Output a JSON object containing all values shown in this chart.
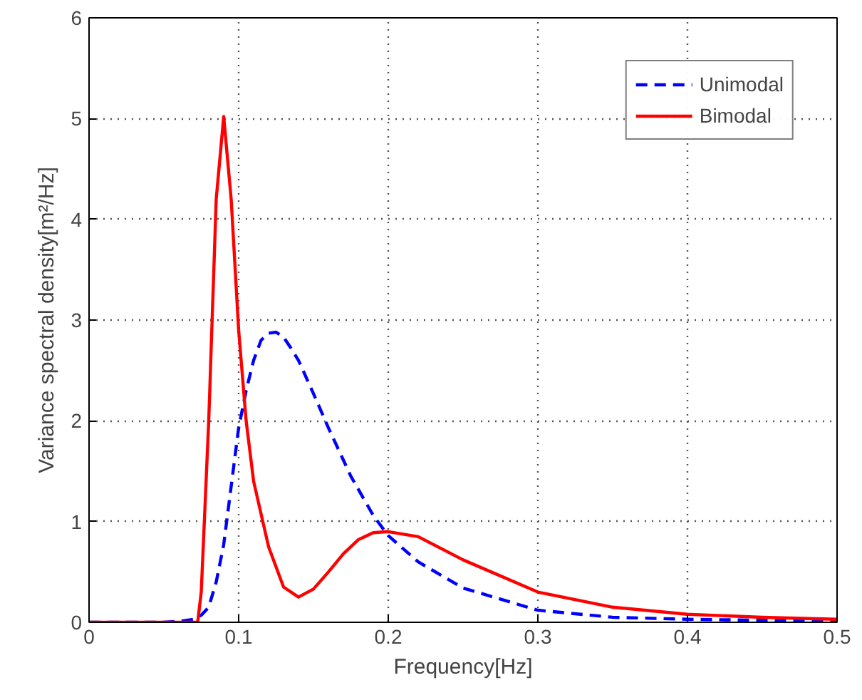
{
  "chart_data": {
    "type": "line",
    "xlabel": "Frequency[Hz]",
    "ylabel": "Variance spectral density[m²/Hz]",
    "xlim": [
      0,
      0.5
    ],
    "ylim": [
      0,
      6
    ],
    "xticks": [
      0,
      0.1,
      0.2,
      0.3,
      0.4,
      0.5
    ],
    "yticks": [
      0,
      1,
      2,
      3,
      4,
      5,
      6
    ],
    "grid": true,
    "legend": "top right",
    "series": [
      {
        "name": "Unimodal",
        "color": "#0000ff",
        "line_style": "dashed",
        "x": [
          0,
          0.05,
          0.06,
          0.07,
          0.075,
          0.08,
          0.085,
          0.09,
          0.095,
          0.1,
          0.105,
          0.11,
          0.115,
          0.12,
          0.125,
          0.13,
          0.135,
          0.14,
          0.15,
          0.16,
          0.175,
          0.19,
          0.2,
          0.22,
          0.25,
          0.3,
          0.35,
          0.4,
          0.45,
          0.5
        ],
        "values": [
          0,
          0,
          0.01,
          0.03,
          0.07,
          0.15,
          0.4,
          0.77,
          1.35,
          1.93,
          2.3,
          2.6,
          2.8,
          2.87,
          2.88,
          2.83,
          2.72,
          2.6,
          2.27,
          1.93,
          1.45,
          1.06,
          0.86,
          0.6,
          0.34,
          0.12,
          0.05,
          0.03,
          0.02,
          0.01
        ]
      },
      {
        "name": "Bimodal",
        "color": "#ff0000",
        "line_style": "solid",
        "x": [
          0,
          0.07,
          0.0726,
          0.075,
          0.08,
          0.085,
          0.09,
          0.095,
          0.1,
          0.105,
          0.11,
          0.12,
          0.13,
          0.14,
          0.15,
          0.16,
          0.17,
          0.18,
          0.19,
          0.2,
          0.22,
          0.25,
          0.3,
          0.35,
          0.4,
          0.45,
          0.5
        ],
        "values": [
          0,
          0,
          0,
          0.3,
          2.0,
          4.2,
          5.02,
          4.2,
          2.9,
          2.0,
          1.4,
          0.75,
          0.35,
          0.25,
          0.33,
          0.5,
          0.68,
          0.82,
          0.89,
          0.9,
          0.85,
          0.62,
          0.3,
          0.15,
          0.08,
          0.05,
          0.03
        ]
      }
    ]
  }
}
